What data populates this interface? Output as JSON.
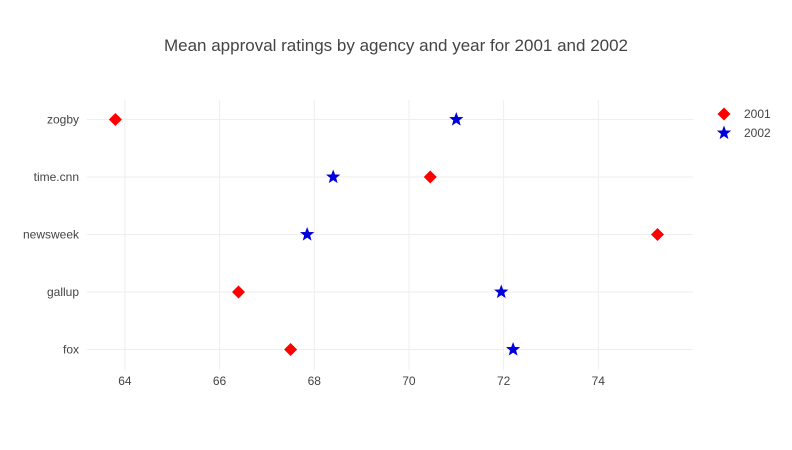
{
  "chart_data": {
    "type": "scatter",
    "title": "Mean approval ratings by agency and year for 2001 and 2002",
    "xlabel": "",
    "ylabel": "",
    "xlim": [
      63.2,
      76.0
    ],
    "xticks": [
      64,
      66,
      68,
      70,
      72,
      74
    ],
    "categories": [
      "fox",
      "gallup",
      "newsweek",
      "time.cnn",
      "zogby"
    ],
    "grid": true,
    "legend_position": "top-right",
    "series": [
      {
        "name": "2001",
        "marker": "diamond",
        "color": "#ff0000",
        "points": [
          {
            "y": "zogby",
            "x": 63.8
          },
          {
            "y": "time.cnn",
            "x": 70.45
          },
          {
            "y": "newsweek",
            "x": 75.25
          },
          {
            "y": "gallup",
            "x": 66.4
          },
          {
            "y": "fox",
            "x": 67.5
          }
        ]
      },
      {
        "name": "2002",
        "marker": "star",
        "color": "#0000dd",
        "points": [
          {
            "y": "zogby",
            "x": 71.0
          },
          {
            "y": "time.cnn",
            "x": 68.4
          },
          {
            "y": "newsweek",
            "x": 67.85
          },
          {
            "y": "gallup",
            "x": 71.95
          },
          {
            "y": "fox",
            "x": 72.2
          }
        ]
      }
    ]
  }
}
